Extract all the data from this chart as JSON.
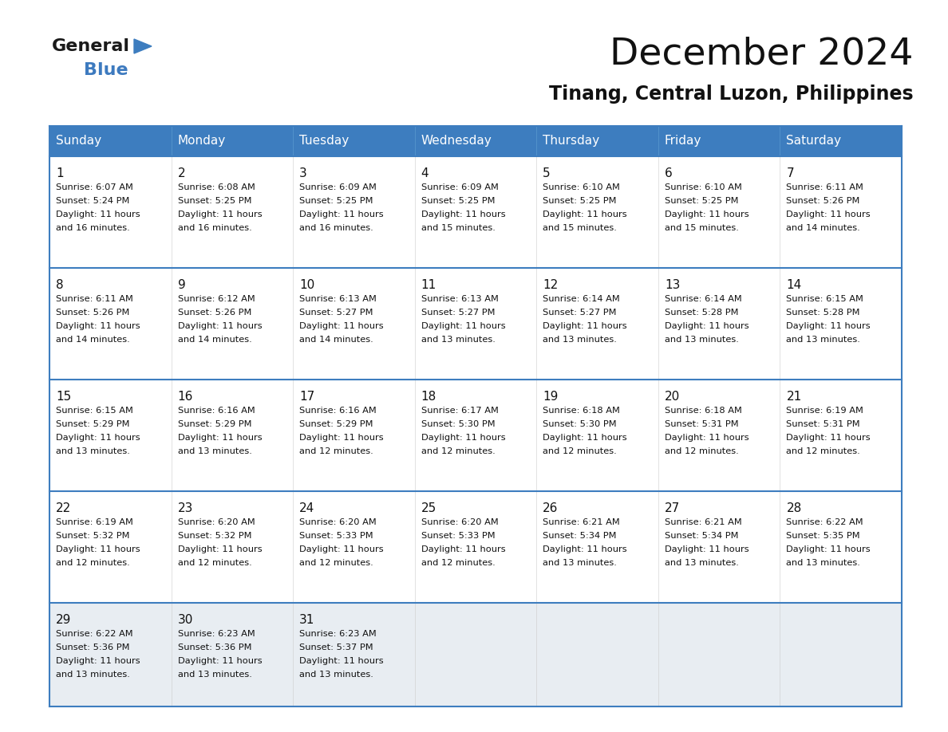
{
  "title": "December 2024",
  "subtitle": "Tinang, Central Luzon, Philippines",
  "header_bg_color": "#3d7dbf",
  "header_text_color": "#ffffff",
  "row_bg_white": "#ffffff",
  "row_bg_gray": "#e8edf2",
  "border_color": "#3d7dbf",
  "cell_border_color": "#ffffff",
  "day_headers": [
    "Sunday",
    "Monday",
    "Tuesday",
    "Wednesday",
    "Thursday",
    "Friday",
    "Saturday"
  ],
  "calendar_data": [
    [
      {
        "day": "1",
        "sunrise": "6:07 AM",
        "sunset": "5:24 PM",
        "daylight": "11 hours",
        "daylight2": "and 16 minutes."
      },
      {
        "day": "2",
        "sunrise": "6:08 AM",
        "sunset": "5:25 PM",
        "daylight": "11 hours",
        "daylight2": "and 16 minutes."
      },
      {
        "day": "3",
        "sunrise": "6:09 AM",
        "sunset": "5:25 PM",
        "daylight": "11 hours",
        "daylight2": "and 16 minutes."
      },
      {
        "day": "4",
        "sunrise": "6:09 AM",
        "sunset": "5:25 PM",
        "daylight": "11 hours",
        "daylight2": "and 15 minutes."
      },
      {
        "day": "5",
        "sunrise": "6:10 AM",
        "sunset": "5:25 PM",
        "daylight": "11 hours",
        "daylight2": "and 15 minutes."
      },
      {
        "day": "6",
        "sunrise": "6:10 AM",
        "sunset": "5:25 PM",
        "daylight": "11 hours",
        "daylight2": "and 15 minutes."
      },
      {
        "day": "7",
        "sunrise": "6:11 AM",
        "sunset": "5:26 PM",
        "daylight": "11 hours",
        "daylight2": "and 14 minutes."
      }
    ],
    [
      {
        "day": "8",
        "sunrise": "6:11 AM",
        "sunset": "5:26 PM",
        "daylight": "11 hours",
        "daylight2": "and 14 minutes."
      },
      {
        "day": "9",
        "sunrise": "6:12 AM",
        "sunset": "5:26 PM",
        "daylight": "11 hours",
        "daylight2": "and 14 minutes."
      },
      {
        "day": "10",
        "sunrise": "6:13 AM",
        "sunset": "5:27 PM",
        "daylight": "11 hours",
        "daylight2": "and 14 minutes."
      },
      {
        "day": "11",
        "sunrise": "6:13 AM",
        "sunset": "5:27 PM",
        "daylight": "11 hours",
        "daylight2": "and 13 minutes."
      },
      {
        "day": "12",
        "sunrise": "6:14 AM",
        "sunset": "5:27 PM",
        "daylight": "11 hours",
        "daylight2": "and 13 minutes."
      },
      {
        "day": "13",
        "sunrise": "6:14 AM",
        "sunset": "5:28 PM",
        "daylight": "11 hours",
        "daylight2": "and 13 minutes."
      },
      {
        "day": "14",
        "sunrise": "6:15 AM",
        "sunset": "5:28 PM",
        "daylight": "11 hours",
        "daylight2": "and 13 minutes."
      }
    ],
    [
      {
        "day": "15",
        "sunrise": "6:15 AM",
        "sunset": "5:29 PM",
        "daylight": "11 hours",
        "daylight2": "and 13 minutes."
      },
      {
        "day": "16",
        "sunrise": "6:16 AM",
        "sunset": "5:29 PM",
        "daylight": "11 hours",
        "daylight2": "and 13 minutes."
      },
      {
        "day": "17",
        "sunrise": "6:16 AM",
        "sunset": "5:29 PM",
        "daylight": "11 hours",
        "daylight2": "and 12 minutes."
      },
      {
        "day": "18",
        "sunrise": "6:17 AM",
        "sunset": "5:30 PM",
        "daylight": "11 hours",
        "daylight2": "and 12 minutes."
      },
      {
        "day": "19",
        "sunrise": "6:18 AM",
        "sunset": "5:30 PM",
        "daylight": "11 hours",
        "daylight2": "and 12 minutes."
      },
      {
        "day": "20",
        "sunrise": "6:18 AM",
        "sunset": "5:31 PM",
        "daylight": "11 hours",
        "daylight2": "and 12 minutes."
      },
      {
        "day": "21",
        "sunrise": "6:19 AM",
        "sunset": "5:31 PM",
        "daylight": "11 hours",
        "daylight2": "and 12 minutes."
      }
    ],
    [
      {
        "day": "22",
        "sunrise": "6:19 AM",
        "sunset": "5:32 PM",
        "daylight": "11 hours",
        "daylight2": "and 12 minutes."
      },
      {
        "day": "23",
        "sunrise": "6:20 AM",
        "sunset": "5:32 PM",
        "daylight": "11 hours",
        "daylight2": "and 12 minutes."
      },
      {
        "day": "24",
        "sunrise": "6:20 AM",
        "sunset": "5:33 PM",
        "daylight": "11 hours",
        "daylight2": "and 12 minutes."
      },
      {
        "day": "25",
        "sunrise": "6:20 AM",
        "sunset": "5:33 PM",
        "daylight": "11 hours",
        "daylight2": "and 12 minutes."
      },
      {
        "day": "26",
        "sunrise": "6:21 AM",
        "sunset": "5:34 PM",
        "daylight": "11 hours",
        "daylight2": "and 13 minutes."
      },
      {
        "day": "27",
        "sunrise": "6:21 AM",
        "sunset": "5:34 PM",
        "daylight": "11 hours",
        "daylight2": "and 13 minutes."
      },
      {
        "day": "28",
        "sunrise": "6:22 AM",
        "sunset": "5:35 PM",
        "daylight": "11 hours",
        "daylight2": "and 13 minutes."
      }
    ],
    [
      {
        "day": "29",
        "sunrise": "6:22 AM",
        "sunset": "5:36 PM",
        "daylight": "11 hours",
        "daylight2": "and 13 minutes."
      },
      {
        "day": "30",
        "sunrise": "6:23 AM",
        "sunset": "5:36 PM",
        "daylight": "11 hours",
        "daylight2": "and 13 minutes."
      },
      {
        "day": "31",
        "sunrise": "6:23 AM",
        "sunset": "5:37 PM",
        "daylight": "11 hours",
        "daylight2": "and 13 minutes."
      },
      null,
      null,
      null,
      null
    ]
  ]
}
